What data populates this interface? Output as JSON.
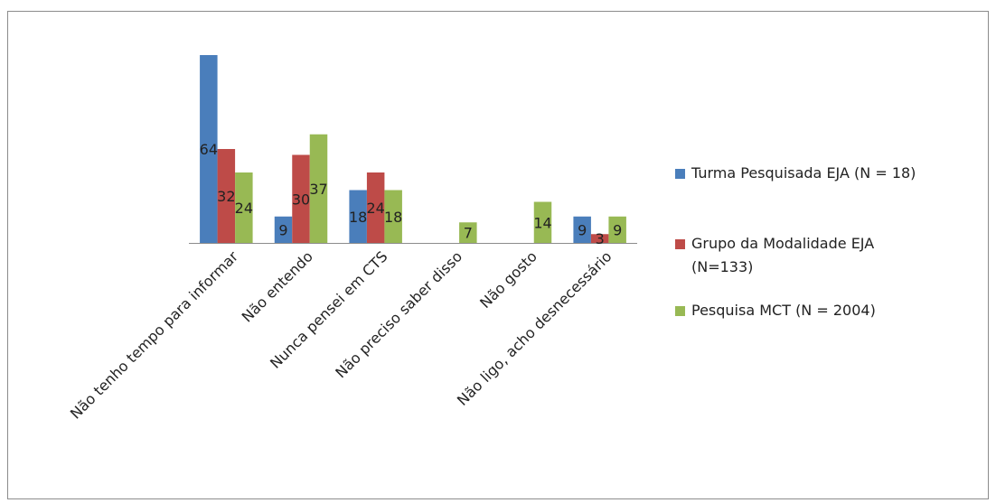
{
  "chart_data": {
    "type": "bar",
    "title": "",
    "xlabel": "",
    "ylabel": "",
    "ylim": [
      0,
      64
    ],
    "grid": false,
    "legend_position": "right",
    "categories": [
      "Não tenho tempo para informar",
      "Não entendo",
      "Nunca pensei em CTS",
      "Não preciso saber disso",
      "Não gosto",
      "Não ligo, acho desnecessário"
    ],
    "series": [
      {
        "name": "Turma Pesquisada EJA (N = 18)",
        "color": "#4a7ebb",
        "values": [
          64,
          9,
          18,
          0,
          0,
          9
        ],
        "labels": [
          "64",
          "9",
          "18",
          "",
          "",
          "9"
        ]
      },
      {
        "name": "Grupo da Modalidade EJA (N=133)",
        "color": "#be4b48",
        "values": [
          32,
          30,
          24,
          0,
          0,
          3
        ],
        "labels": [
          "32",
          "30",
          "24",
          "",
          "",
          "3"
        ]
      },
      {
        "name": "Pesquisa MCT (N = 2004)",
        "color": "#98b954",
        "values": [
          24,
          37,
          18,
          7,
          14,
          9
        ],
        "labels": [
          "24",
          "37",
          "18",
          "7",
          "14",
          "9"
        ]
      }
    ]
  }
}
